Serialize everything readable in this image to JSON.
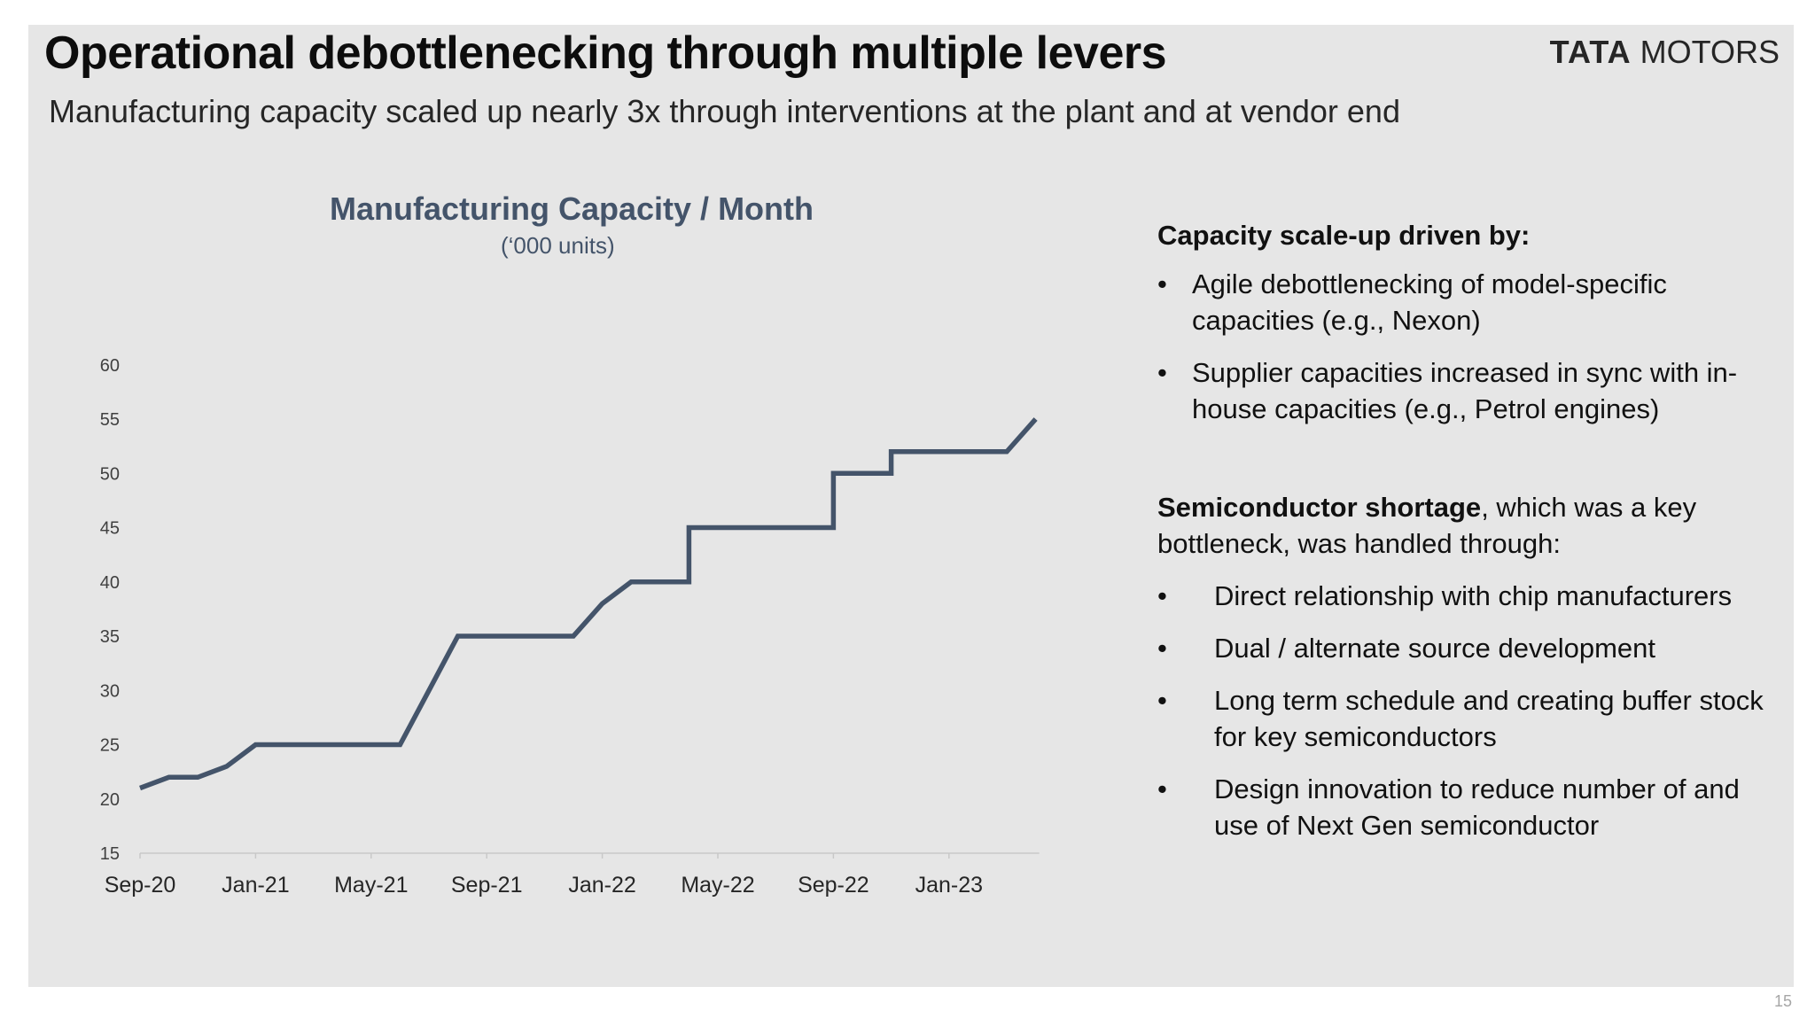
{
  "header": {
    "title": "Operational debottlenecking through multiple levers",
    "subtitle": "Manufacturing capacity scaled up nearly 3x through interventions at the plant and at vendor end",
    "logo_bold": "TATA",
    "logo_light": "MOTORS"
  },
  "chart_data": {
    "type": "line",
    "title": "Manufacturing Capacity / Month",
    "subtitle": "(‘000 units)",
    "ylim": [
      15,
      60
    ],
    "yticks": [
      "15",
      "20",
      "25",
      "30",
      "35",
      "40",
      "45",
      "50",
      "55",
      "60"
    ],
    "xticks": [
      "Sep-20",
      "Jan-21",
      "May-21",
      "Sep-21",
      "Jan-22",
      "May-22",
      "Sep-22",
      "Jan-23"
    ],
    "color": "#44546a",
    "grid": false,
    "x": [
      "Sep-20",
      "Oct-20",
      "Nov-20",
      "Dec-20",
      "Jan-21",
      "Feb-21",
      "Mar-21",
      "Apr-21",
      "May-21",
      "Jun-21",
      "Jul-21",
      "Aug-21",
      "Sep-21",
      "Oct-21",
      "Nov-21",
      "Dec-21",
      "Jan-22",
      "Feb-22",
      "Mar-22",
      "Apr-22",
      "Apr-22",
      "May-22",
      "Jun-22",
      "Jul-22",
      "Aug-22",
      "Sep-22",
      "Sep-22",
      "Oct-22",
      "Nov-22",
      "Nov-22",
      "Dec-22",
      "Jan-23",
      "Feb-23",
      "Mar-23",
      "Apr-23"
    ],
    "values": [
      21,
      22,
      22,
      23,
      25,
      25,
      25,
      25,
      25,
      25,
      30,
      35,
      35,
      35,
      35,
      35,
      38,
      40,
      40,
      40,
      45,
      45,
      45,
      45,
      45,
      45,
      50,
      50,
      50,
      52,
      52,
      52,
      52,
      52,
      55
    ]
  },
  "right_panel": {
    "heading1": "Capacity scale-up driven by:",
    "bullets1": [
      "Agile debottlenecking of model-specific capacities (e.g., Nexon)",
      "Supplier capacities increased in sync with in-house capacities (e.g., Petrol engines)"
    ],
    "heading2_bold": "Semiconductor shortage",
    "heading2_rest": ", which was a key bottleneck, was handled through:",
    "bullets2": [
      "Direct relationship with chip manufacturers",
      "Dual / alternate source development",
      "Long term schedule and creating buffer stock for key semiconductors",
      "Design innovation to reduce number of and use of Next Gen semiconductor"
    ],
    "bullet_char": "•"
  },
  "footer": {
    "page_number": "15"
  }
}
